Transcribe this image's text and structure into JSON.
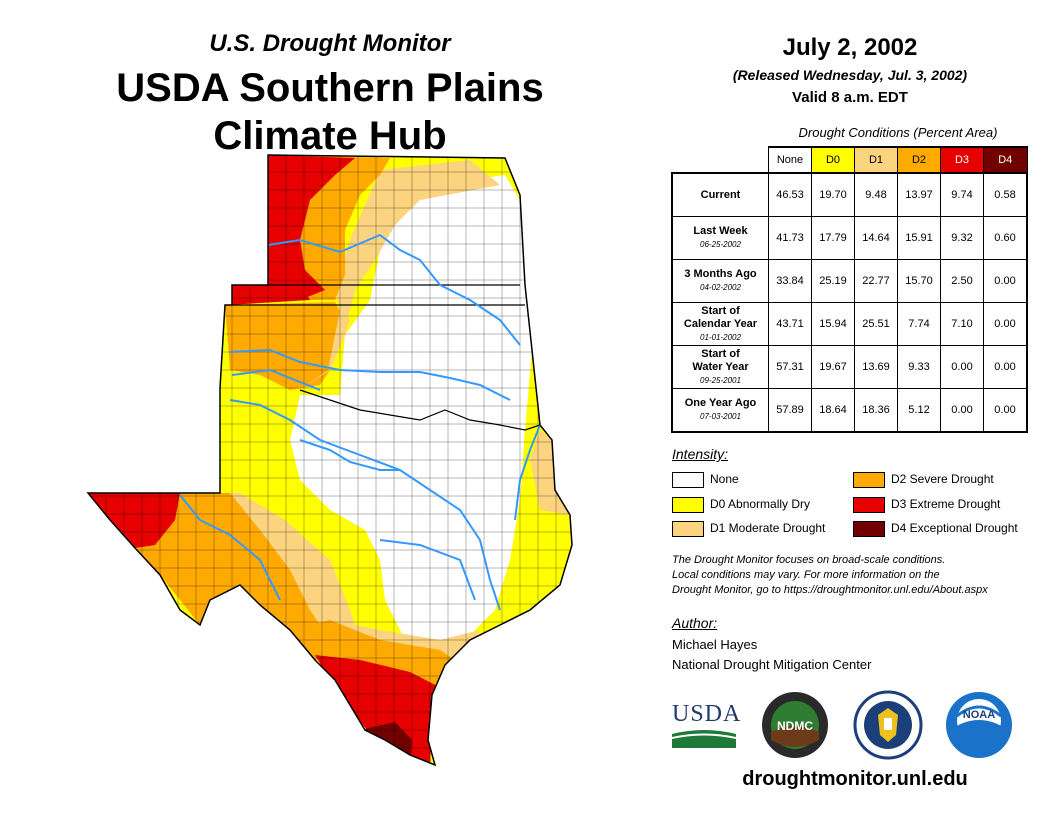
{
  "header": {
    "subtitle": "U.S. Drought Monitor",
    "title_line1": "USDA Southern Plains",
    "title_line2": "Climate Hub",
    "date": "July 2, 2002",
    "released": "(Released Wednesday, Jul. 3, 2002)",
    "valid": "Valid 8 a.m. EDT"
  },
  "table": {
    "caption": "Drought Conditions (Percent Area)",
    "columns": [
      {
        "label": "None",
        "color": "#ffffff",
        "text_color": "#000000"
      },
      {
        "label": "D0",
        "color": "#ffff00",
        "text_color": "#000000"
      },
      {
        "label": "D1",
        "color": "#fcd37f",
        "text_color": "#000000"
      },
      {
        "label": "D2",
        "color": "#ffaa00",
        "text_color": "#000000"
      },
      {
        "label": "D3",
        "color": "#e60000",
        "text_color": "#ffffff"
      },
      {
        "label": "D4",
        "color": "#730000",
        "text_color": "#ffffff"
      }
    ],
    "rows": [
      {
        "label": "Current",
        "label2": "",
        "date": "",
        "values": [
          "46.53",
          "19.70",
          "9.48",
          "13.97",
          "9.74",
          "0.58"
        ]
      },
      {
        "label": "Last Week",
        "label2": "",
        "date": "06-25-2002",
        "values": [
          "41.73",
          "17.79",
          "14.64",
          "15.91",
          "9.32",
          "0.60"
        ]
      },
      {
        "label": "3 Months Ago",
        "label2": "",
        "date": "04-02-2002",
        "values": [
          "33.84",
          "25.19",
          "22.77",
          "15.70",
          "2.50",
          "0.00"
        ]
      },
      {
        "label": "Start of",
        "label2": "Calendar Year",
        "date": "01-01-2002",
        "values": [
          "43.71",
          "15.94",
          "25.51",
          "7.74",
          "7.10",
          "0.00"
        ]
      },
      {
        "label": "Start of",
        "label2": "Water Year",
        "date": "09-25-2001",
        "values": [
          "57.31",
          "19.67",
          "13.69",
          "9.33",
          "0.00",
          "0.00"
        ]
      },
      {
        "label": "One Year Ago",
        "label2": "",
        "date": "07-03-2001",
        "values": [
          "57.89",
          "18.64",
          "18.36",
          "5.12",
          "0.00",
          "0.00"
        ]
      }
    ]
  },
  "legend": {
    "title": "Intensity:",
    "items": [
      {
        "label": "None",
        "color": "#ffffff"
      },
      {
        "label": "D0 Abnormally Dry",
        "color": "#ffff00"
      },
      {
        "label": "D1 Moderate Drought",
        "color": "#fcd37f"
      },
      {
        "label": "D2 Severe Drought",
        "color": "#ffaa00"
      },
      {
        "label": "D3 Extreme Drought",
        "color": "#e60000"
      },
      {
        "label": "D4 Exceptional Drought",
        "color": "#730000"
      }
    ]
  },
  "note": {
    "line1": "The Drought Monitor focuses on broad-scale conditions.",
    "line2": "Local conditions may vary. For more information on the",
    "line3": "Drought Monitor, go to https://droughtmonitor.unl.edu/About.aspx"
  },
  "author": {
    "label": "Author:",
    "name": "Michael Hayes",
    "org": "National Drought Mitigation Center"
  },
  "logos": {
    "usda": "USDA",
    "ndmc": "NDMC",
    "noaa": "NOAA"
  },
  "website": "droughtmonitor.unl.edu",
  "map": {
    "river_color": "#3399ff",
    "county_line_color": "#000000"
  }
}
